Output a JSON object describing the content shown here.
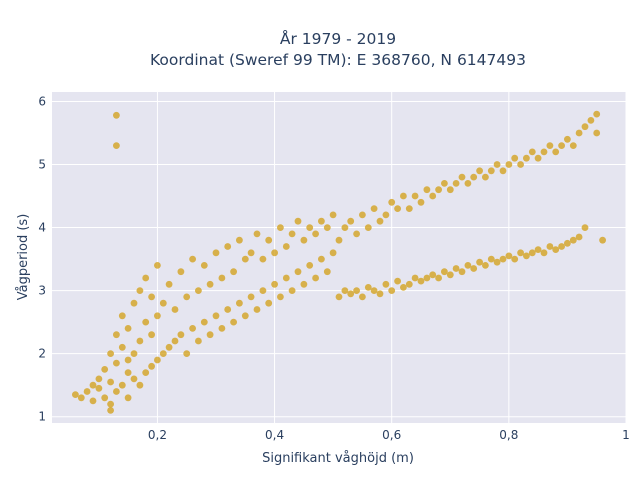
{
  "chart_data": {
    "type": "scatter",
    "title": [
      "År 1979 - 2019",
      "Koordinat (Sweref 99 TM): E 368760, N 6147493"
    ],
    "xlabel": "Signifikant våghöjd (m)",
    "ylabel": "Vågperiod (s)",
    "xlim": [
      0.02,
      1.0
    ],
    "ylim": [
      0.9,
      6.15
    ],
    "xticks": [
      {
        "value": 0.2,
        "label": "0,2"
      },
      {
        "value": 0.4,
        "label": "0,4"
      },
      {
        "value": 0.6,
        "label": "0,6"
      },
      {
        "value": 0.8,
        "label": "0,8"
      },
      {
        "value": 1.0,
        "label": "1"
      }
    ],
    "yticks": [
      {
        "value": 1,
        "label": "1"
      },
      {
        "value": 2,
        "label": "2"
      },
      {
        "value": 3,
        "label": "3"
      },
      {
        "value": 4,
        "label": "4"
      },
      {
        "value": 5,
        "label": "5"
      },
      {
        "value": 6,
        "label": "6"
      }
    ],
    "grid": true,
    "marker_color": "#d4a21c",
    "plot_background": "#e5e5f0",
    "series": [
      {
        "points": [
          [
            0.06,
            1.35
          ],
          [
            0.07,
            1.3
          ],
          [
            0.08,
            1.4
          ],
          [
            0.09,
            1.25
          ],
          [
            0.09,
            1.5
          ],
          [
            0.1,
            1.45
          ],
          [
            0.1,
            1.6
          ],
          [
            0.11,
            1.3
          ],
          [
            0.11,
            1.75
          ],
          [
            0.12,
            1.2
          ],
          [
            0.12,
            1.55
          ],
          [
            0.12,
            2.0
          ],
          [
            0.13,
            1.4
          ],
          [
            0.13,
            1.85
          ],
          [
            0.13,
            2.3
          ],
          [
            0.14,
            1.5
          ],
          [
            0.14,
            2.1
          ],
          [
            0.14,
            2.6
          ],
          [
            0.15,
            1.3
          ],
          [
            0.15,
            1.7
          ],
          [
            0.15,
            2.4
          ],
          [
            0.16,
            1.6
          ],
          [
            0.16,
            2.0
          ],
          [
            0.16,
            2.8
          ],
          [
            0.17,
            1.5
          ],
          [
            0.17,
            2.2
          ],
          [
            0.17,
            3.0
          ],
          [
            0.18,
            1.7
          ],
          [
            0.18,
            2.5
          ],
          [
            0.18,
            3.2
          ],
          [
            0.19,
            1.8
          ],
          [
            0.19,
            2.3
          ],
          [
            0.19,
            2.9
          ],
          [
            0.2,
            1.9
          ],
          [
            0.2,
            2.6
          ],
          [
            0.2,
            3.4
          ],
          [
            0.21,
            2.0
          ],
          [
            0.21,
            2.8
          ],
          [
            0.22,
            2.1
          ],
          [
            0.22,
            3.1
          ],
          [
            0.23,
            2.2
          ],
          [
            0.23,
            2.7
          ],
          [
            0.24,
            2.3
          ],
          [
            0.24,
            3.3
          ],
          [
            0.25,
            2.0
          ],
          [
            0.25,
            2.9
          ],
          [
            0.26,
            2.4
          ],
          [
            0.26,
            3.5
          ],
          [
            0.27,
            2.2
          ],
          [
            0.27,
            3.0
          ],
          [
            0.28,
            2.5
          ],
          [
            0.28,
            3.4
          ],
          [
            0.29,
            2.3
          ],
          [
            0.29,
            3.1
          ],
          [
            0.3,
            2.6
          ],
          [
            0.3,
            3.6
          ],
          [
            0.31,
            2.4
          ],
          [
            0.31,
            3.2
          ],
          [
            0.32,
            2.7
          ],
          [
            0.32,
            3.7
          ],
          [
            0.33,
            2.5
          ],
          [
            0.33,
            3.3
          ],
          [
            0.34,
            2.8
          ],
          [
            0.34,
            3.8
          ],
          [
            0.35,
            2.6
          ],
          [
            0.35,
            3.5
          ],
          [
            0.36,
            2.9
          ],
          [
            0.36,
            3.6
          ],
          [
            0.37,
            2.7
          ],
          [
            0.37,
            3.9
          ],
          [
            0.38,
            3.0
          ],
          [
            0.38,
            3.5
          ],
          [
            0.39,
            2.8
          ],
          [
            0.39,
            3.8
          ],
          [
            0.4,
            3.1
          ],
          [
            0.4,
            3.6
          ],
          [
            0.41,
            2.9
          ],
          [
            0.41,
            4.0
          ],
          [
            0.42,
            3.2
          ],
          [
            0.42,
            3.7
          ],
          [
            0.43,
            3.0
          ],
          [
            0.43,
            3.9
          ],
          [
            0.44,
            3.3
          ],
          [
            0.44,
            4.1
          ],
          [
            0.45,
            3.1
          ],
          [
            0.45,
            3.8
          ],
          [
            0.46,
            3.4
          ],
          [
            0.46,
            4.0
          ],
          [
            0.47,
            3.2
          ],
          [
            0.47,
            3.9
          ],
          [
            0.48,
            3.5
          ],
          [
            0.48,
            4.1
          ],
          [
            0.49,
            3.3
          ],
          [
            0.49,
            4.0
          ],
          [
            0.5,
            3.6
          ],
          [
            0.5,
            4.2
          ],
          [
            0.51,
            2.9
          ],
          [
            0.51,
            3.8
          ],
          [
            0.52,
            3.0
          ],
          [
            0.52,
            4.0
          ],
          [
            0.53,
            2.95
          ],
          [
            0.53,
            4.1
          ],
          [
            0.54,
            3.0
          ],
          [
            0.54,
            3.9
          ],
          [
            0.55,
            2.9
          ],
          [
            0.55,
            4.2
          ],
          [
            0.56,
            3.05
          ],
          [
            0.56,
            4.0
          ],
          [
            0.57,
            3.0
          ],
          [
            0.57,
            4.3
          ],
          [
            0.58,
            2.95
          ],
          [
            0.58,
            4.1
          ],
          [
            0.59,
            3.1
          ],
          [
            0.59,
            4.2
          ],
          [
            0.6,
            3.0
          ],
          [
            0.6,
            4.4
          ],
          [
            0.61,
            3.15
          ],
          [
            0.61,
            4.3
          ],
          [
            0.62,
            3.05
          ],
          [
            0.62,
            4.5
          ],
          [
            0.63,
            3.1
          ],
          [
            0.63,
            4.3
          ],
          [
            0.64,
            3.2
          ],
          [
            0.64,
            4.5
          ],
          [
            0.65,
            3.15
          ],
          [
            0.65,
            4.4
          ],
          [
            0.66,
            3.2
          ],
          [
            0.66,
            4.6
          ],
          [
            0.67,
            3.25
          ],
          [
            0.67,
            4.5
          ],
          [
            0.68,
            3.2
          ],
          [
            0.68,
            4.6
          ],
          [
            0.69,
            3.3
          ],
          [
            0.69,
            4.7
          ],
          [
            0.7,
            3.25
          ],
          [
            0.7,
            4.6
          ],
          [
            0.71,
            3.35
          ],
          [
            0.71,
            4.7
          ],
          [
            0.72,
            3.3
          ],
          [
            0.72,
            4.8
          ],
          [
            0.73,
            3.4
          ],
          [
            0.73,
            4.7
          ],
          [
            0.74,
            3.35
          ],
          [
            0.74,
            4.8
          ],
          [
            0.75,
            3.45
          ],
          [
            0.75,
            4.9
          ],
          [
            0.76,
            3.4
          ],
          [
            0.76,
            4.8
          ],
          [
            0.77,
            3.5
          ],
          [
            0.77,
            4.9
          ],
          [
            0.78,
            3.45
          ],
          [
            0.78,
            5.0
          ],
          [
            0.79,
            3.5
          ],
          [
            0.79,
            4.9
          ],
          [
            0.8,
            3.55
          ],
          [
            0.8,
            5.0
          ],
          [
            0.81,
            3.5
          ],
          [
            0.81,
            5.1
          ],
          [
            0.82,
            3.6
          ],
          [
            0.82,
            5.0
          ],
          [
            0.83,
            3.55
          ],
          [
            0.83,
            5.1
          ],
          [
            0.84,
            3.6
          ],
          [
            0.84,
            5.2
          ],
          [
            0.85,
            3.65
          ],
          [
            0.85,
            5.1
          ],
          [
            0.86,
            3.6
          ],
          [
            0.86,
            5.2
          ],
          [
            0.87,
            3.7
          ],
          [
            0.87,
            5.3
          ],
          [
            0.88,
            3.65
          ],
          [
            0.88,
            5.2
          ],
          [
            0.89,
            3.7
          ],
          [
            0.89,
            5.3
          ],
          [
            0.9,
            3.75
          ],
          [
            0.9,
            5.4
          ],
          [
            0.91,
            3.8
          ],
          [
            0.91,
            5.3
          ],
          [
            0.92,
            3.85
          ],
          [
            0.92,
            5.5
          ],
          [
            0.93,
            4.0
          ],
          [
            0.93,
            5.6
          ],
          [
            0.94,
            5.7
          ],
          [
            0.95,
            5.8
          ],
          [
            0.95,
            5.5
          ],
          [
            0.96,
            3.8
          ],
          [
            0.13,
            5.78
          ],
          [
            0.13,
            5.3
          ],
          [
            0.12,
            1.1
          ],
          [
            0.15,
            1.9
          ]
        ]
      }
    ]
  }
}
